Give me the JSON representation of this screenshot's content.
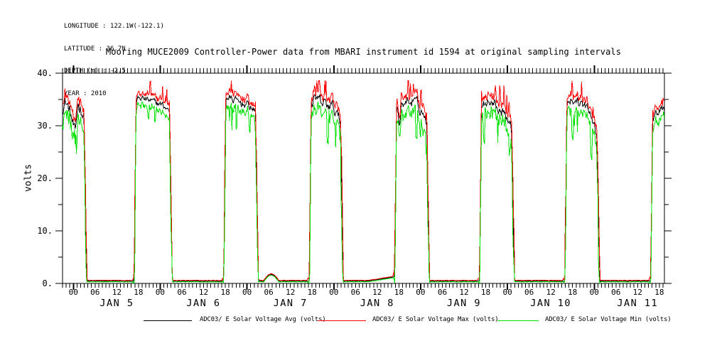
{
  "meta": {
    "lines": [
      "LONGITUDE : 122.1W(-122.1)",
      "LATITUDE : 36.7N",
      "DEPTH (m) : -2.5",
      "YEAR : 2010"
    ]
  },
  "chart_data": {
    "type": "line",
    "title": "Mooring MUCE2009 Controller-Power data from MBARI instrument id 1594 at original sampling intervals",
    "ylabel": "volts",
    "x_unit": "hours since 2010-01-05 00:00 (axis labeled in hours of day)",
    "x_range": [
      -3,
      163.4
    ],
    "y_range": [
      0,
      40
    ],
    "y_major_ticks": [
      0,
      10,
      20,
      30,
      40
    ],
    "y_major_labels": [
      "0.",
      "10.",
      "20.",
      "30.",
      "40."
    ],
    "y_minor_step": 5,
    "x_minor_step_hours": 1,
    "x_major_every_hours": 24,
    "hour_label_cycle": [
      "00",
      "06",
      "12",
      "18"
    ],
    "hour_label_range": [
      0,
      162,
      6
    ],
    "day_labels": [
      {
        "text": "JAN 5",
        "noon_t": 12
      },
      {
        "text": "JAN 6",
        "noon_t": 36
      },
      {
        "text": "JAN 7",
        "noon_t": 60
      },
      {
        "text": "JAN 8",
        "noon_t": 84
      },
      {
        "text": "JAN 9",
        "noon_t": 108
      },
      {
        "text": "JAN 10",
        "noon_t": 132
      },
      {
        "text": "JAN 11",
        "noon_t": 156
      }
    ],
    "series": [
      {
        "name": "ADC03/ E Solar Voltage Avg (volts)",
        "color": "#000000",
        "role": "avg"
      },
      {
        "name": "ADC03/ E Solar Voltage Max (volts)",
        "color": "#ff0000",
        "role": "max"
      },
      {
        "name": "ADC03/ E Solar Voltage Min (volts)",
        "color": "#00e000",
        "role": "min"
      }
    ],
    "night_level": {
      "avg": 0.45,
      "max": 0.57,
      "min": 0.3
    },
    "cycles": [
      {
        "rise": -6.8,
        "fall": 3.3,
        "noise": 1.5,
        "plateau_profile": [
          [
            -3,
            33.6
          ],
          [
            -2.2,
            34.6
          ],
          [
            -1.2,
            33.2
          ],
          [
            -0.2,
            30.5
          ],
          [
            0.5,
            28.2
          ],
          [
            1.2,
            34.2
          ],
          [
            2.2,
            33.2
          ],
          [
            3.0,
            31.0
          ]
        ]
      },
      {
        "rise": 16.8,
        "fall": 26.9,
        "noise": 0.7,
        "plateau_profile": [
          [
            17.4,
            34.9
          ],
          [
            18.6,
            35.3
          ],
          [
            21.5,
            34.7
          ],
          [
            24.5,
            34.0
          ],
          [
            26.6,
            32.8
          ]
        ]
      },
      {
        "rise": 41.6,
        "fall": 50.7,
        "noise": 0.85,
        "plateau_profile": [
          [
            42.2,
            35.4
          ],
          [
            43.5,
            35.1
          ],
          [
            46.5,
            34.3
          ],
          [
            49.0,
            33.7
          ],
          [
            50.4,
            32.3
          ]
        ]
      },
      {
        "rise": 65.2,
        "fall": 74.2,
        "noise": 1.3,
        "plateau_profile": [
          [
            65.8,
            34.3
          ],
          [
            67.2,
            35.0
          ],
          [
            69.5,
            34.1
          ],
          [
            72.0,
            33.4
          ],
          [
            73.9,
            30.6
          ]
        ]
      },
      {
        "rise": 88.8,
        "fall": 98.0,
        "noise": 1.25,
        "plateau_profile": [
          [
            89.4,
            33.6
          ],
          [
            90.1,
            30.2
          ],
          [
            90.8,
            34.4
          ],
          [
            93.5,
            34.7
          ],
          [
            95.5,
            33.8
          ],
          [
            97.6,
            31.0
          ]
        ]
      },
      {
        "rise": 112.3,
        "fall": 121.5,
        "noise": 1.1,
        "plateau_profile": [
          [
            112.9,
            33.9
          ],
          [
            114.2,
            34.6
          ],
          [
            116.5,
            34.1
          ],
          [
            118.8,
            32.2
          ],
          [
            121.2,
            30.4
          ]
        ]
      },
      {
        "rise": 135.9,
        "fall": 145.1,
        "noise": 0.95,
        "plateau_profile": [
          [
            136.5,
            34.3
          ],
          [
            137.4,
            35.1
          ],
          [
            140.5,
            34.2
          ],
          [
            143.0,
            32.6
          ],
          [
            144.8,
            28.0
          ]
        ]
      },
      {
        "rise": 159.6,
        "fall": 166.5,
        "noise": 1.05,
        "plateau_profile": [
          [
            160.3,
            31.2
          ],
          [
            161.2,
            32.6
          ],
          [
            162.5,
            33.4
          ],
          [
            163.4,
            33.0
          ]
        ]
      }
    ],
    "pre_dawn_ramps": [
      [
        81.5,
        88.7,
        1.25
      ]
    ],
    "night_bumps": [
      {
        "t0": 52.6,
        "t1": 56.8,
        "peak": 1.7
      }
    ],
    "sample_step_hours": 0.166667,
    "legend_position": "bottom"
  }
}
